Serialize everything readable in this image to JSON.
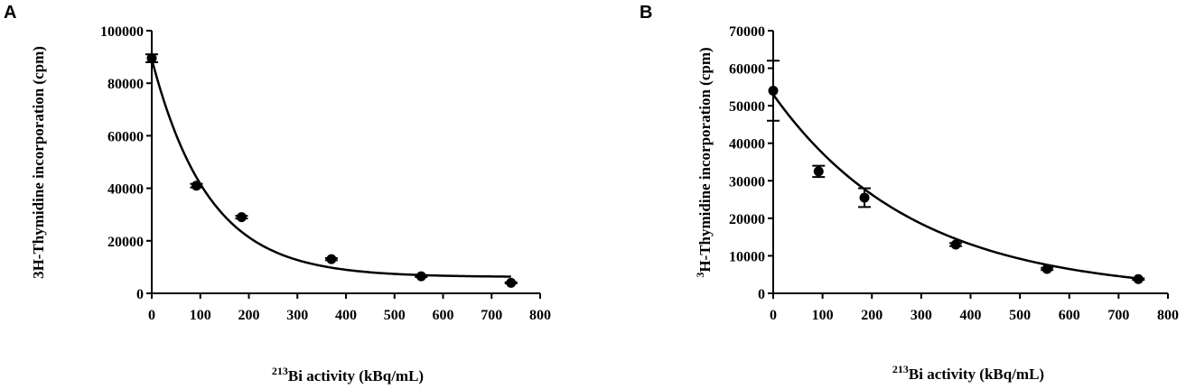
{
  "chart_data": [
    {
      "panel": "A",
      "type": "scatter",
      "title": "",
      "xlabel_sup": "213",
      "xlabel": "Bi activity (kBq/mL)",
      "ylabel_sup": "",
      "ylabel": "3H-Thymidine incorporation (cpm)",
      "xlim": [
        0,
        800
      ],
      "ylim": [
        0,
        100000
      ],
      "xticks": [
        "0",
        "100",
        "200",
        "300",
        "400",
        "500",
        "600",
        "700",
        "800"
      ],
      "yticks": [
        "0",
        "20000",
        "40000",
        "60000",
        "80000",
        "100000"
      ],
      "grid": false,
      "legend": "none",
      "series": [
        {
          "x": [
            0,
            92,
            185,
            370,
            555,
            740
          ],
          "y": [
            89500,
            41000,
            29000,
            13000,
            6500,
            4000
          ],
          "err": [
            1500,
            700,
            500,
            400,
            300,
            200
          ]
        }
      ],
      "fit": {
        "model": "one-phase exponential decay",
        "plateau": 6200,
        "span": 83000,
        "k": 0.0085
      }
    },
    {
      "panel": "B",
      "type": "scatter",
      "title": "",
      "xlabel_sup": "213",
      "xlabel": "Bi activity (kBq/mL)",
      "ylabel_sup": "3",
      "ylabel": "H-Thymidine incorporation (cpm)",
      "xlim": [
        0,
        800
      ],
      "ylim": [
        0,
        70000
      ],
      "xticks": [
        "0",
        "100",
        "200",
        "300",
        "400",
        "500",
        "600",
        "700",
        "800"
      ],
      "yticks": [
        "0",
        "10000",
        "20000",
        "30000",
        "40000",
        "50000",
        "60000",
        "70000"
      ],
      "grid": false,
      "legend": "none",
      "series": [
        {
          "x": [
            0,
            92,
            185,
            370,
            555,
            740
          ],
          "y": [
            54000,
            32500,
            25500,
            13000,
            6500,
            3800
          ],
          "err": [
            8000,
            1500,
            2500,
            400,
            300,
            200
          ]
        }
      ],
      "fit": {
        "model": "one-phase exponential decay",
        "plateau": 0,
        "span": 53000,
        "k": 0.0035
      }
    }
  ]
}
